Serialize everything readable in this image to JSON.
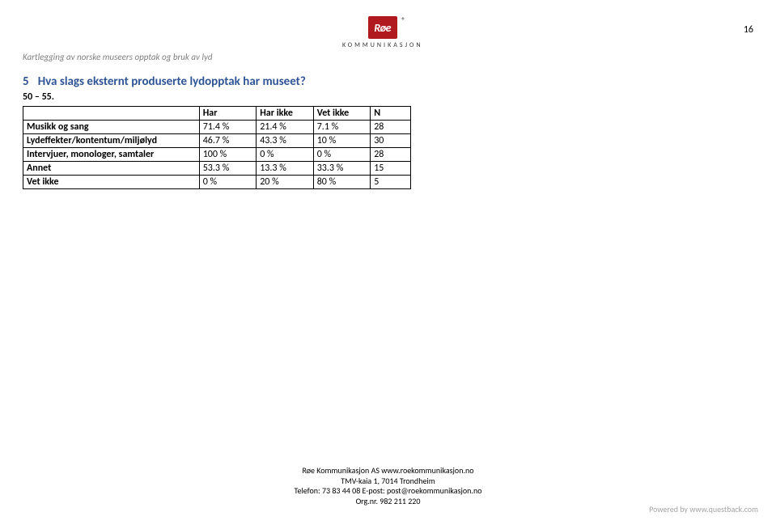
{
  "page_number": "16",
  "header_subtitle": "Kartlegging av norske museers opptak og bruk av lyd",
  "logo": {
    "badge_text": "Røe",
    "word": "KOMMUNIKASJON",
    "reg": "®"
  },
  "section": {
    "number": "5",
    "title": "Hva slags eksternt produserte lydopptak har museet?",
    "subtitle": "50 – 55."
  },
  "table": {
    "columns": [
      "Har",
      "Har ikke",
      "Vet ikke",
      "N"
    ],
    "rows": [
      {
        "label": "Musikk og sang",
        "cells": [
          "71.4 %",
          "21.4 %",
          "7.1 %",
          "28"
        ]
      },
      {
        "label": "Lydeffekter/kontentum/miljølyd",
        "cells": [
          "46.7 %",
          "43.3 %",
          "10 %",
          "30"
        ]
      },
      {
        "label": "Intervjuer, monologer, samtaler",
        "cells": [
          "100 %",
          "0 %",
          "0 %",
          "28"
        ]
      },
      {
        "label": "Annet",
        "cells": [
          "53.3 %",
          "13.3 %",
          "33.3 %",
          "15"
        ]
      },
      {
        "label": "Vet ikke",
        "cells": [
          "0 %",
          "20 %",
          "80 %",
          "5"
        ]
      }
    ]
  },
  "footer": {
    "line1": "Røe Kommunikasjon AS  www.roekommunikasjon.no",
    "line2": "TMV-kaia 1, 7014 Trondheim",
    "line3": "Telefon: 73 83 44 08   E-post: post@roekommunikasjon.no",
    "line4": "Org.nr. 982 211 220"
  },
  "powered": "Powered by www.questback.com"
}
